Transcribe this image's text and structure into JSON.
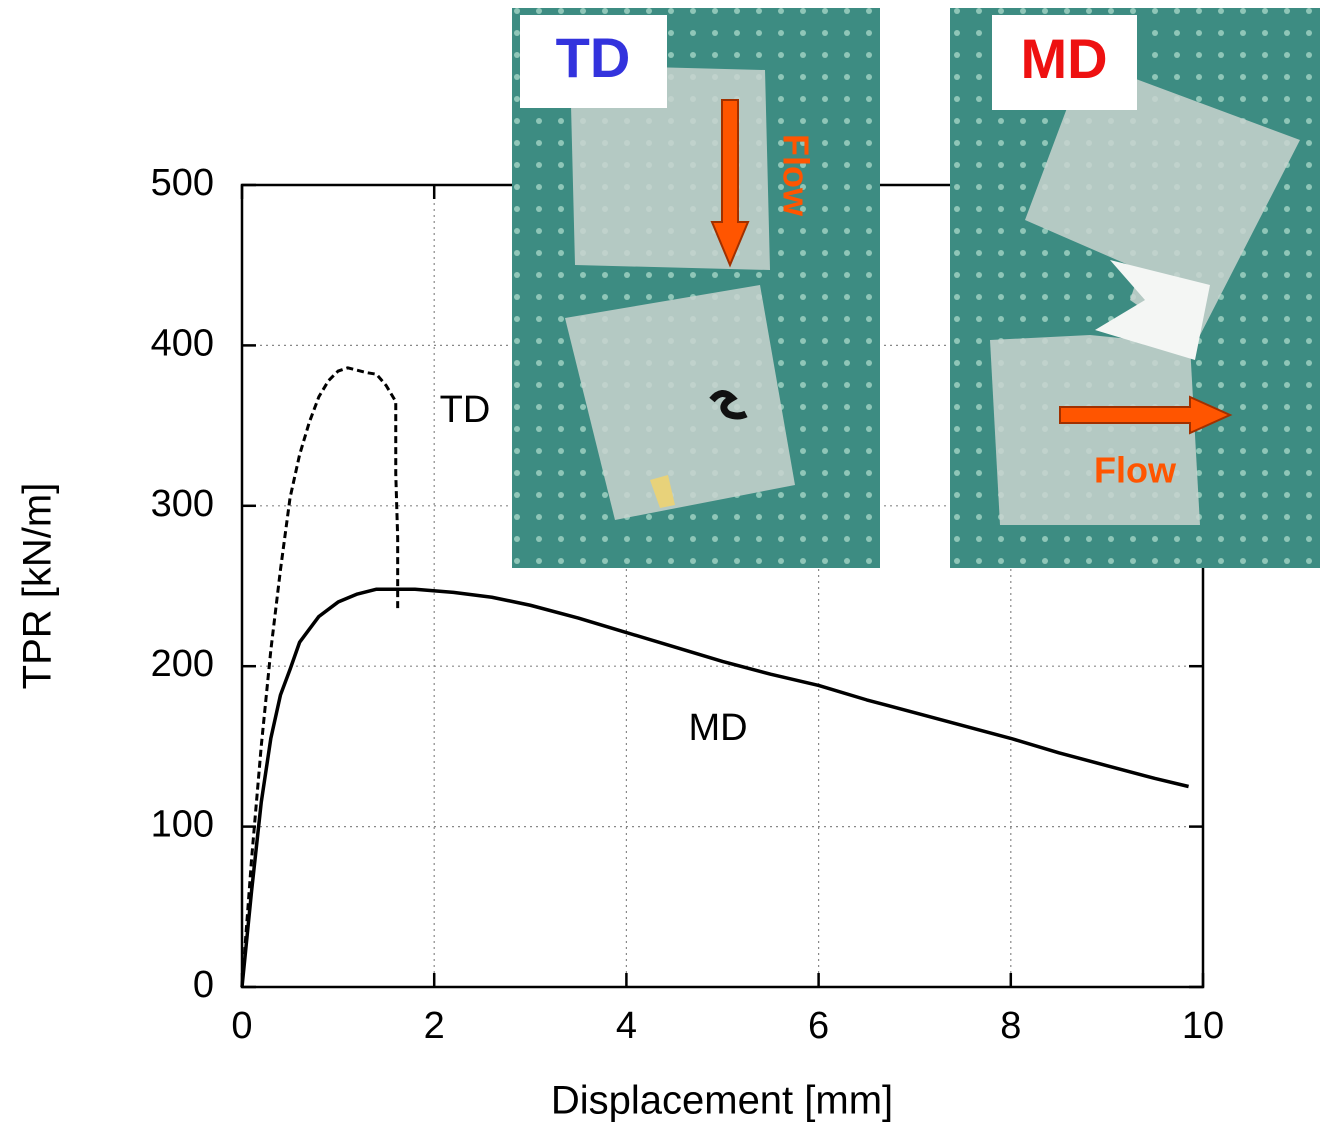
{
  "chart_data": {
    "type": "line",
    "xlabel": "Displacement [mm]",
    "ylabel": "TPR [kN/m]",
    "xlim": [
      0,
      10
    ],
    "xticks": [
      0,
      2,
      4,
      6,
      8,
      10
    ],
    "ylim": [
      0,
      500
    ],
    "yticks": [
      0,
      100,
      200,
      300,
      400,
      500
    ],
    "grid": true,
    "series": [
      {
        "name": "TD",
        "color": "#000000",
        "dashed": true,
        "x": [
          0,
          0.1,
          0.2,
          0.3,
          0.4,
          0.5,
          0.6,
          0.7,
          0.8,
          0.9,
          1.0,
          1.1,
          1.3,
          1.4,
          1.5,
          1.6,
          1.6,
          1.62,
          1.62
        ],
        "values": [
          0,
          80,
          150,
          210,
          260,
          305,
          332,
          352,
          368,
          378,
          384,
          386,
          383,
          382,
          375,
          365,
          320,
          280,
          234
        ]
      },
      {
        "name": "MD",
        "color": "#000000",
        "dashed": false,
        "x": [
          0,
          0.1,
          0.2,
          0.3,
          0.4,
          0.5,
          0.6,
          0.8,
          1.0,
          1.2,
          1.4,
          1.8,
          2.2,
          2.6,
          3.0,
          3.5,
          4.0,
          4.5,
          5.0,
          5.5,
          6.0,
          6.5,
          7.0,
          7.5,
          8.0,
          8.5,
          9.0,
          9.5,
          9.85
        ],
        "values": [
          0,
          60,
          115,
          155,
          182,
          198,
          215,
          231,
          240,
          245,
          248,
          248,
          246,
          243,
          238,
          230,
          221,
          212,
          203,
          195,
          188,
          179,
          171,
          163,
          155,
          146,
          138,
          130,
          125
        ]
      }
    ],
    "insets": [
      {
        "label": "TD",
        "label_color": "#3333dd",
        "flow": "Flow",
        "flow_color": "#ff5500"
      },
      {
        "label": "MD",
        "label_color": "#ee1111",
        "flow": "Flow",
        "flow_color": "#ff5500"
      }
    ]
  }
}
